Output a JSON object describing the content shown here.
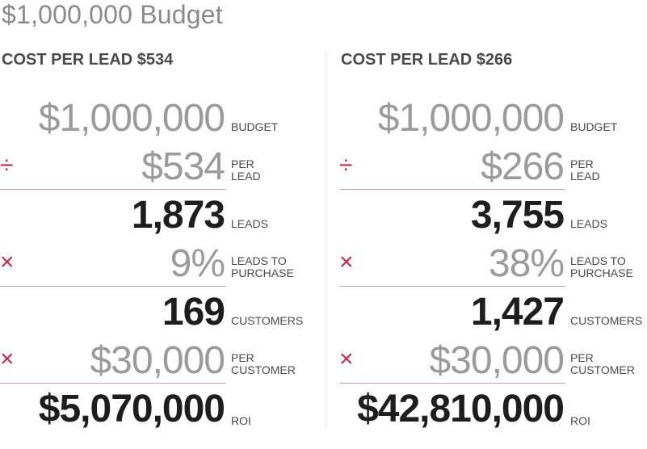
{
  "title": "$1,000,000 Budget",
  "colors": {
    "accent": "#c8284a",
    "muted": "#9b9b9b",
    "strong": "#1e1e1e"
  },
  "columns": [
    {
      "heading": "COST PER LEAD $534",
      "rows": [
        {
          "op": "",
          "value": "$1,000,000",
          "label_1": "BUDGET",
          "label_2": ""
        },
        {
          "op": "÷",
          "value": "$534",
          "label_1": "PER",
          "label_2": "LEAD"
        },
        {
          "op": "",
          "value": "1,873",
          "label_1": "LEADS",
          "label_2": ""
        },
        {
          "op": "×",
          "value": "9%",
          "label_1": "LEADS TO",
          "label_2": "PURCHASE"
        },
        {
          "op": "",
          "value": "169",
          "label_1": "CUSTOMERS",
          "label_2": ""
        },
        {
          "op": "×",
          "value": "$30,000",
          "label_1": "PER",
          "label_2": "CUSTOMER"
        },
        {
          "op": "",
          "value": "$5,070,000",
          "label_1": "ROI",
          "label_2": ""
        }
      ]
    },
    {
      "heading": "COST PER LEAD $266",
      "rows": [
        {
          "op": "",
          "value": "$1,000,000",
          "label_1": "BUDGET",
          "label_2": ""
        },
        {
          "op": "÷",
          "value": "$266",
          "label_1": "PER",
          "label_2": "LEAD"
        },
        {
          "op": "",
          "value": "3,755",
          "label_1": "LEADS",
          "label_2": ""
        },
        {
          "op": "×",
          "value": "38%",
          "label_1": "LEADS TO",
          "label_2": "PURCHASE"
        },
        {
          "op": "",
          "value": "1,427",
          "label_1": "CUSTOMERS",
          "label_2": ""
        },
        {
          "op": "×",
          "value": "$30,000",
          "label_1": "PER",
          "label_2": "CUSTOMER"
        },
        {
          "op": "",
          "value": "$42,810,000",
          "label_1": "ROI",
          "label_2": ""
        }
      ]
    }
  ]
}
